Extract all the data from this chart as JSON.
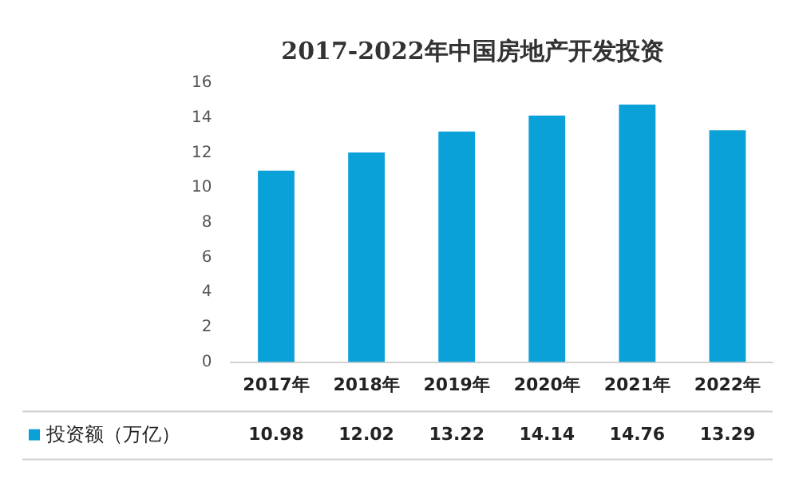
{
  "chart_data": {
    "type": "bar",
    "title": "2017-2022年中国房地产开发投资",
    "categories": [
      "2017年",
      "2018年",
      "2019年",
      "2020年",
      "2021年",
      "2022年"
    ],
    "series": [
      {
        "name": "投资额（万亿）",
        "color": "#0aa0d8",
        "values": [
          10.98,
          12.02,
          13.22,
          14.14,
          14.76,
          13.29
        ]
      }
    ],
    "ylim": [
      0,
      16
    ],
    "yticks": [
      0,
      2,
      4,
      6,
      8,
      10,
      12,
      14,
      16
    ],
    "grid": false,
    "legend": "bottom",
    "data_labels": true
  }
}
